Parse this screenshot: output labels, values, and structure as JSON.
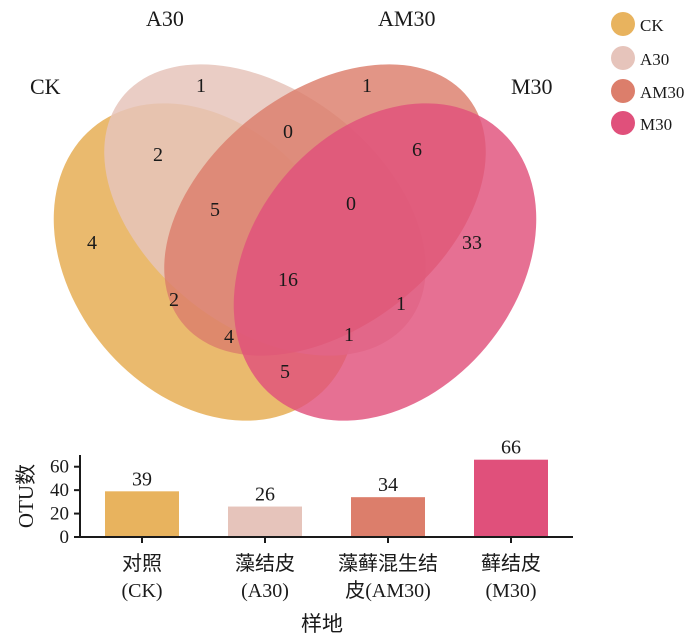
{
  "colors": {
    "CK": "#e8b35e",
    "A30": "#e6c4bb",
    "AM30": "#dc7e6b",
    "M30": "#e0507b"
  },
  "venn": {
    "set_labels": [
      "CK",
      "A30",
      "AM30",
      "M30"
    ],
    "regions": [
      {
        "sets": [
          "CK"
        ],
        "count": "4"
      },
      {
        "sets": [
          "A30"
        ],
        "count": "1"
      },
      {
        "sets": [
          "AM30"
        ],
        "count": "1"
      },
      {
        "sets": [
          "M30"
        ],
        "count": "33"
      },
      {
        "sets": [
          "A30",
          "AM30"
        ],
        "count": "0"
      },
      {
        "sets": [
          "CK",
          "A30"
        ],
        "count": "2"
      },
      {
        "sets": [
          "AM30",
          "M30"
        ],
        "count": "6"
      },
      {
        "sets": [
          "CK",
          "A30",
          "AM30"
        ],
        "count": "5"
      },
      {
        "sets": [
          "A30",
          "AM30",
          "M30"
        ],
        "count": "0"
      },
      {
        "sets": [
          "CK",
          "A30",
          "AM30",
          "M30"
        ],
        "count": "16"
      },
      {
        "sets": [
          "CK",
          "AM30"
        ],
        "count": "2"
      },
      {
        "sets": [
          "A30",
          "M30"
        ],
        "count": "1"
      },
      {
        "sets": [
          "CK",
          "AM30",
          "M30"
        ],
        "count": "4"
      },
      {
        "sets": [
          "CK",
          "A30",
          "M30"
        ],
        "count": "1"
      },
      {
        "sets": [
          "CK",
          "M30"
        ],
        "count": "5"
      }
    ]
  },
  "legend": [
    "CK",
    "A30",
    "AM30",
    "M30"
  ],
  "chart_data": {
    "type": "bar",
    "categories": [
      {
        "line1": "对照",
        "line2": "(CK)"
      },
      {
        "line1": "藻结皮",
        "line2": "(A30)"
      },
      {
        "line1": "藻藓混生结",
        "line2": "皮(AM30)"
      },
      {
        "line1": "藓结皮",
        "line2": "(M30)"
      }
    ],
    "values": [
      39,
      26,
      34,
      66
    ],
    "ylabel": "OTU数",
    "xlabel": "样地",
    "ylim": [
      0,
      70
    ],
    "yticks": [
      0,
      20,
      40,
      60
    ]
  }
}
